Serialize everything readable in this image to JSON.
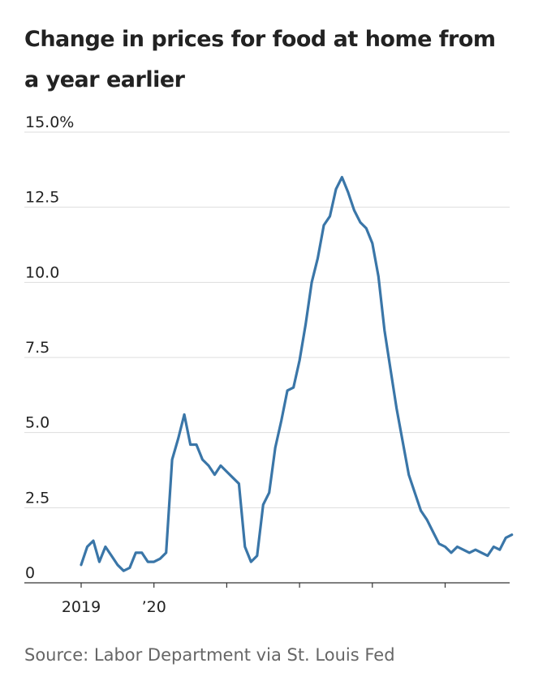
{
  "title": "Change in prices for food at home from a year earlier",
  "source": "Source: Labor Department via St. Louis Fed",
  "colors": {
    "line": "#3a76a8",
    "grid": "#dddddd",
    "axis": "#333333"
  },
  "chart_data": {
    "type": "line",
    "title": "Change in prices for food at home from a year earlier",
    "xlabel": "",
    "ylabel": "",
    "x_range": [
      "2019-01",
      "2024-12"
    ],
    "ylim": [
      0,
      15
    ],
    "yticks": [
      {
        "value": 0,
        "label": "0"
      },
      {
        "value": 2.5,
        "label": "2.5"
      },
      {
        "value": 5,
        "label": "5.0"
      },
      {
        "value": 7.5,
        "label": "7.5"
      },
      {
        "value": 10,
        "label": "10.0"
      },
      {
        "value": 12.5,
        "label": "12.5"
      },
      {
        "value": 15,
        "label": "15.0%"
      }
    ],
    "xticks": [
      {
        "value": "2019-01",
        "label": "2019"
      },
      {
        "value": "2020-01",
        "label": "’20"
      },
      {
        "value": "2021-01",
        "label": ""
      },
      {
        "value": "2022-01",
        "label": ""
      },
      {
        "value": "2023-01",
        "label": ""
      },
      {
        "value": "2024-01",
        "label": ""
      }
    ],
    "grid": true,
    "series": [
      {
        "x": [
          "2019-01",
          "2019-02",
          "2019-03",
          "2019-04",
          "2019-05",
          "2019-06",
          "2019-07",
          "2019-08",
          "2019-09",
          "2019-10",
          "2019-11",
          "2019-12",
          "2020-01",
          "2020-02",
          "2020-03",
          "2020-04",
          "2020-05",
          "2020-06",
          "2020-07",
          "2020-08",
          "2020-09",
          "2020-10",
          "2020-11",
          "2020-12",
          "2021-01",
          "2021-02",
          "2021-03",
          "2021-04",
          "2021-05",
          "2021-06",
          "2021-07",
          "2021-08",
          "2021-09",
          "2021-10",
          "2021-11",
          "2021-12",
          "2022-01",
          "2022-02",
          "2022-03",
          "2022-04",
          "2022-05",
          "2022-06",
          "2022-07",
          "2022-08",
          "2022-09",
          "2022-10",
          "2022-11",
          "2022-12",
          "2023-01",
          "2023-02",
          "2023-03",
          "2023-04",
          "2023-05",
          "2023-06",
          "2023-07",
          "2023-08",
          "2023-09",
          "2023-10",
          "2023-11",
          "2023-12",
          "2024-01",
          "2024-02",
          "2024-03",
          "2024-04",
          "2024-05",
          "2024-06",
          "2024-07",
          "2024-08",
          "2024-09",
          "2024-10",
          "2024-11",
          "2024-12"
        ],
        "y": [
          0.6,
          1.2,
          1.4,
          0.7,
          1.2,
          0.9,
          0.6,
          0.4,
          0.5,
          1.0,
          1.0,
          0.7,
          0.7,
          0.8,
          1.0,
          4.1,
          4.8,
          5.6,
          4.6,
          4.6,
          4.1,
          3.9,
          3.6,
          3.9,
          3.7,
          3.5,
          3.3,
          1.2,
          0.7,
          0.9,
          2.6,
          3.0,
          4.5,
          5.4,
          6.4,
          6.5,
          7.4,
          8.6,
          10.0,
          10.8,
          11.9,
          12.2,
          13.1,
          13.5,
          13.0,
          12.4,
          12.0,
          11.8,
          11.3,
          10.2,
          8.4,
          7.1,
          5.8,
          4.7,
          3.6,
          3.0,
          2.4,
          2.1,
          1.7,
          1.3,
          1.2,
          1.0,
          1.2,
          1.1,
          1.0,
          1.1,
          1.0,
          0.9,
          1.2,
          1.1,
          1.5,
          1.6
        ]
      }
    ]
  }
}
